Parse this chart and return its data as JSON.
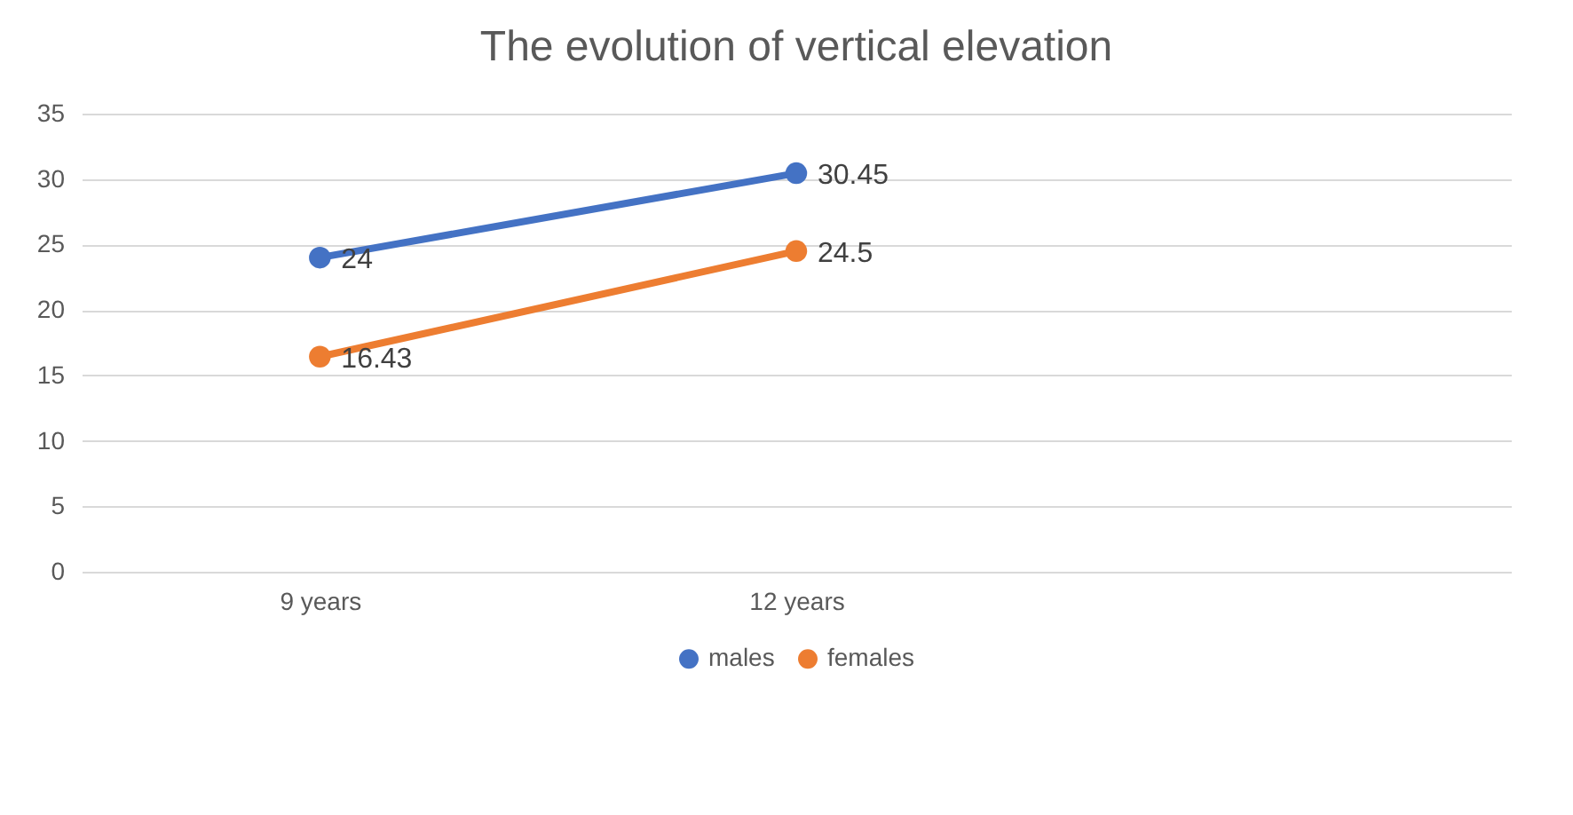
{
  "chart_data": {
    "type": "line",
    "title": "The evolution of vertical elevation",
    "categories": [
      "9 years",
      "12 years",
      null
    ],
    "series": [
      {
        "name": "males",
        "color": "#4472c4",
        "values": [
          24,
          30.45,
          null
        ]
      },
      {
        "name": "females",
        "color": "#ed7d31",
        "values": [
          16.43,
          24.5,
          null
        ]
      }
    ],
    "ylim": [
      0,
      35
    ],
    "yticks": [
      0,
      5,
      10,
      15,
      20,
      25,
      30,
      35
    ],
    "grid": "y",
    "legend": "bottom",
    "marker": "circle",
    "line_style": "solid",
    "data_labels": true
  }
}
